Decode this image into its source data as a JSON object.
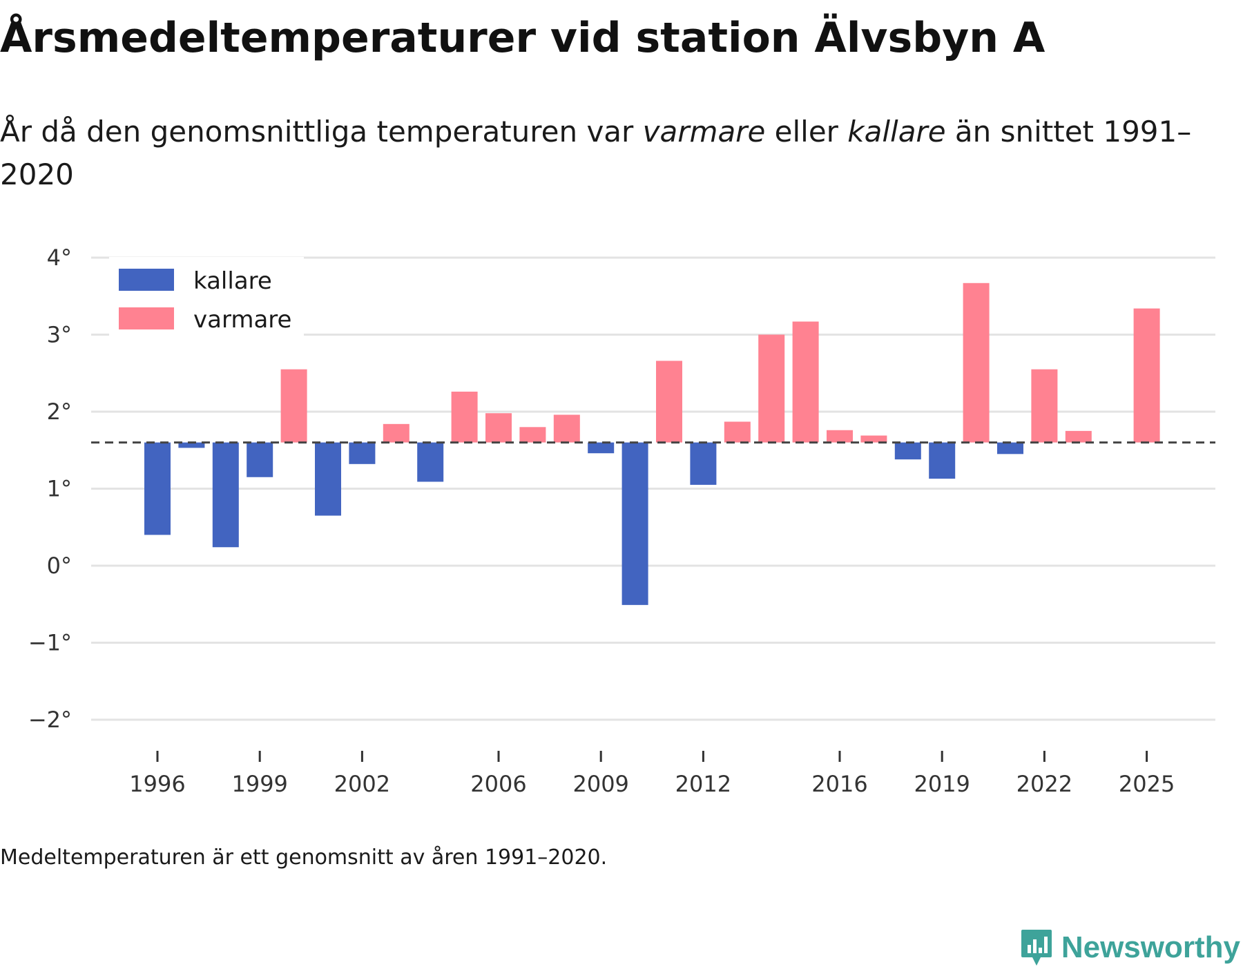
{
  "title": "Årsmedeltemperaturer vid station Älvsbyn A",
  "subtitle": {
    "part1": "År då den genomsnittliga temperaturen var ",
    "warm_word": "varmare",
    "part2": " eller ",
    "cold_word": "kallare",
    "part3": " än snittet 1991–2020"
  },
  "footnote": "Medeltemperaturen är ett genomsnitt av åren 1991–2020.",
  "brand": {
    "name": "Newsworthy",
    "color": "#3ea39a"
  },
  "chart_data": {
    "type": "bar",
    "title": "Årsmedeltemperaturer vid station Älvsbyn A",
    "xlabel": "",
    "ylabel": "",
    "baseline": 1.6,
    "baseline_style": "dashed",
    "ylim": [
      -2.3,
      4.1
    ],
    "yticks": [
      -2,
      -1,
      0,
      1,
      2,
      3,
      4
    ],
    "ytick_labels": [
      "−2°",
      "−1°",
      "0°",
      "1°",
      "2°",
      "3°",
      "4°"
    ],
    "xticks": [
      1996,
      1999,
      2002,
      2006,
      2009,
      2012,
      2016,
      2019,
      2022,
      2025
    ],
    "xtick_labels": [
      "1996",
      "1999",
      "2002",
      "2006",
      "2009",
      "2012",
      "2016",
      "2019",
      "2022",
      "2025"
    ],
    "x": [
      1996,
      1997,
      1998,
      1999,
      2000,
      2001,
      2002,
      2003,
      2004,
      2005,
      2006,
      2007,
      2008,
      2009,
      2010,
      2011,
      2012,
      2013,
      2014,
      2015,
      2016,
      2017,
      2018,
      2019,
      2020,
      2021,
      2022,
      2023,
      2024,
      2025
    ],
    "values": [
      0.4,
      1.53,
      0.24,
      1.15,
      2.55,
      0.65,
      1.32,
      1.84,
      1.09,
      2.26,
      1.98,
      1.8,
      1.96,
      1.46,
      -0.51,
      2.66,
      1.05,
      1.87,
      3.0,
      3.17,
      1.76,
      1.69,
      1.38,
      1.13,
      3.67,
      1.45,
      2.55,
      1.75,
      null,
      3.34
    ],
    "legend": [
      {
        "label": "kallare",
        "color": "#4264c0"
      },
      {
        "label": "varmare",
        "color": "#ff8291"
      }
    ],
    "legend_position": "top-left",
    "grid": true
  }
}
